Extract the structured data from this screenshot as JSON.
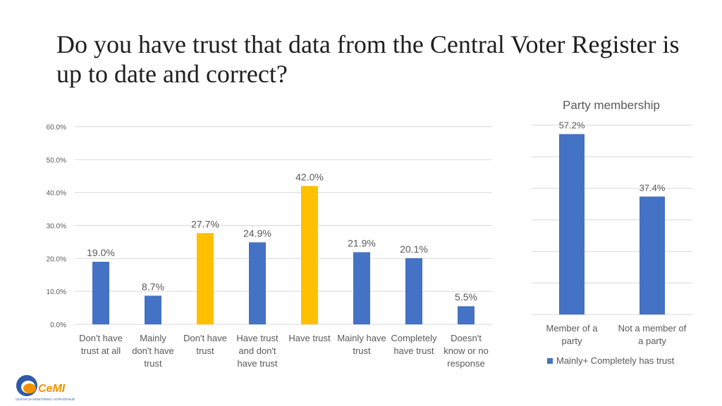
{
  "slide": {
    "title": "Do you have trust that data from the Central Voter Register is up to date and correct?"
  },
  "logo": {
    "text": "CeMI",
    "tagline": "CENTAR ZA MONITORING I ISTRAŽIVANJE"
  },
  "colors": {
    "blue": "#4472C4",
    "gold": "#FFC000",
    "grid": "#D9D9D9",
    "label": "#595959"
  },
  "chart_data": [
    {
      "type": "bar",
      "title": "",
      "xlabel": "",
      "ylabel": "",
      "ylim": [
        0,
        60
      ],
      "yticks": [
        0,
        10,
        20,
        30,
        40,
        50,
        60
      ],
      "ytick_labels": [
        "0.0%",
        "10.0%",
        "20.0%",
        "30.0%",
        "40.0%",
        "50.0%",
        "60.0%"
      ],
      "grid": true,
      "categories": [
        [
          "Don't have",
          "trust at all"
        ],
        [
          "Mainly",
          "don't have",
          "trust"
        ],
        [
          "Don't have",
          "trust"
        ],
        [
          "Have trust",
          "and don't",
          "have trust"
        ],
        [
          "Have trust"
        ],
        [
          "Mainly have",
          "trust"
        ],
        [
          "Completely",
          "have trust"
        ],
        [
          "Doesn't",
          "know or no",
          "response"
        ]
      ],
      "values": [
        19.0,
        8.7,
        27.7,
        24.9,
        42.0,
        21.9,
        20.1,
        5.5
      ],
      "data_labels": [
        "19.0%",
        "8.7%",
        "27.7%",
        "24.9%",
        "42.0%",
        "21.9%",
        "20.1%",
        "5.5%"
      ],
      "bar_colors": [
        "#4472C4",
        "#4472C4",
        "#FFC000",
        "#4472C4",
        "#FFC000",
        "#4472C4",
        "#4472C4",
        "#4472C4"
      ]
    },
    {
      "type": "bar",
      "title": "Party membership",
      "ylim": [
        0,
        60
      ],
      "grid": true,
      "categories": [
        [
          "Member of a",
          "party"
        ],
        [
          "Not a member of",
          "a party"
        ]
      ],
      "series": [
        {
          "name": "Mainly+ Completely has trust",
          "values": [
            57.2,
            37.4
          ],
          "data_labels": [
            "57.2%",
            "37.4%"
          ],
          "color": "#4472C4"
        }
      ],
      "legend": "bottom"
    }
  ]
}
